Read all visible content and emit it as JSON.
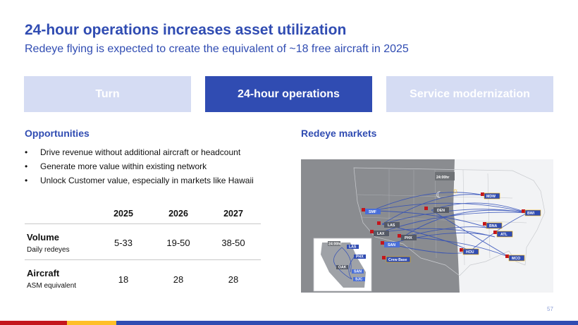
{
  "header": {
    "title": "24-hour operations increases asset utilization",
    "subtitle": "Redeye flying is expected to create the equivalent of ~18 free aircraft in 2025"
  },
  "tabs": [
    {
      "label": "Turn",
      "active": false
    },
    {
      "label": "24-hour operations",
      "active": true
    },
    {
      "label": "Service modernization",
      "active": false
    }
  ],
  "opportunities": {
    "heading": "Opportunities",
    "bullets": [
      "Drive revenue without additional aircraft or headcount",
      "Generate more value within existing network",
      "Unlock Customer value, especially in markets like Hawaii"
    ]
  },
  "table": {
    "columns": [
      "2025",
      "2026",
      "2027"
    ],
    "rows": [
      {
        "label": "Volume",
        "sublabel": "Daily redeyes",
        "values": [
          "5-33",
          "19-50",
          "38-50"
        ]
      },
      {
        "label": "Aircraft",
        "sublabel": "ASM equivalent",
        "values": [
          "18",
          "28",
          "28"
        ]
      }
    ]
  },
  "map": {
    "heading": "Redeye markets",
    "clock": "24:00hr",
    "inset_clock": "24:00hr",
    "legend": "Crew Base",
    "airports": [
      "MDW",
      "BWI",
      "BNA",
      "ATL",
      "HOU",
      "MCO",
      "SMF",
      "DEN",
      "LAS",
      "LAX",
      "PHX",
      "SAN"
    ],
    "inset_airports": [
      "LAS",
      "PHX",
      "OAK",
      "SAN",
      "SJC"
    ]
  },
  "footer": {
    "page_number": "57"
  },
  "colors": {
    "brand_blue": "#304CB2",
    "tab_inactive": "#D5DCF3",
    "red": "#C4161C",
    "yellow": "#FFBF27"
  }
}
